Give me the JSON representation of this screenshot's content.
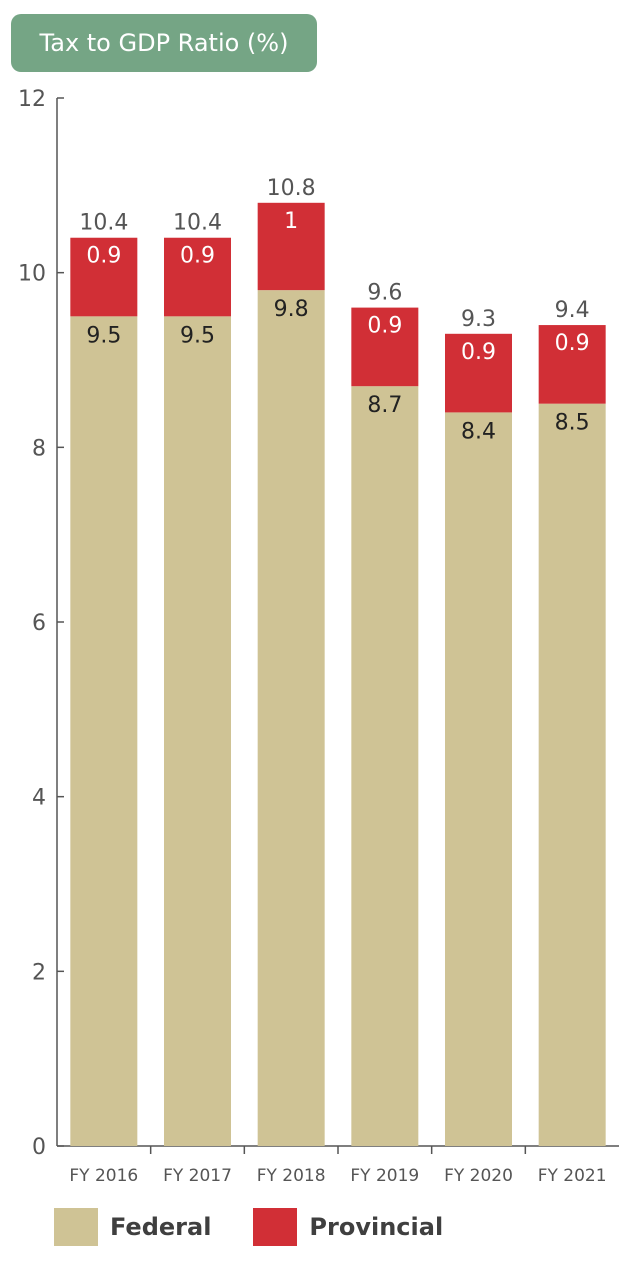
{
  "chart_data": {
    "type": "bar",
    "stacked": true,
    "title": "Tax to GDP Ratio (%)",
    "categories": [
      "FY 2016",
      "FY 2017",
      "FY 2018",
      "FY 2019",
      "FY 2020",
      "FY 2021"
    ],
    "series": [
      {
        "name": "Federal",
        "values": [
          9.5,
          9.5,
          9.8,
          8.7,
          8.4,
          8.5
        ],
        "labels": [
          "9.5",
          "9.5",
          "9.8",
          "8.7",
          "8.4",
          "8.5"
        ]
      },
      {
        "name": "Provincial",
        "values": [
          0.9,
          0.9,
          1.0,
          0.9,
          0.9,
          0.9
        ],
        "labels": [
          "0.9",
          "0.9",
          "1",
          "0.9",
          "0.9",
          "0.9"
        ]
      }
    ],
    "totals": [
      "10.4",
      "10.4",
      "10.8",
      "9.6",
      "9.3",
      "9.4"
    ],
    "ylim": [
      0,
      12
    ],
    "yticks": [
      "0",
      "2",
      "4",
      "6",
      "8",
      "10",
      "12"
    ],
    "legend_position": "bottom",
    "grid": false
  },
  "colors": {
    "federal": "#cfc395",
    "provincial": "#d12f36",
    "title_bg": "#75a585",
    "axis": "#555555",
    "tick_text": "#555555",
    "total_text": "#555555",
    "federal_label_text": "#222222",
    "provincial_label_text": "#ffffff"
  }
}
